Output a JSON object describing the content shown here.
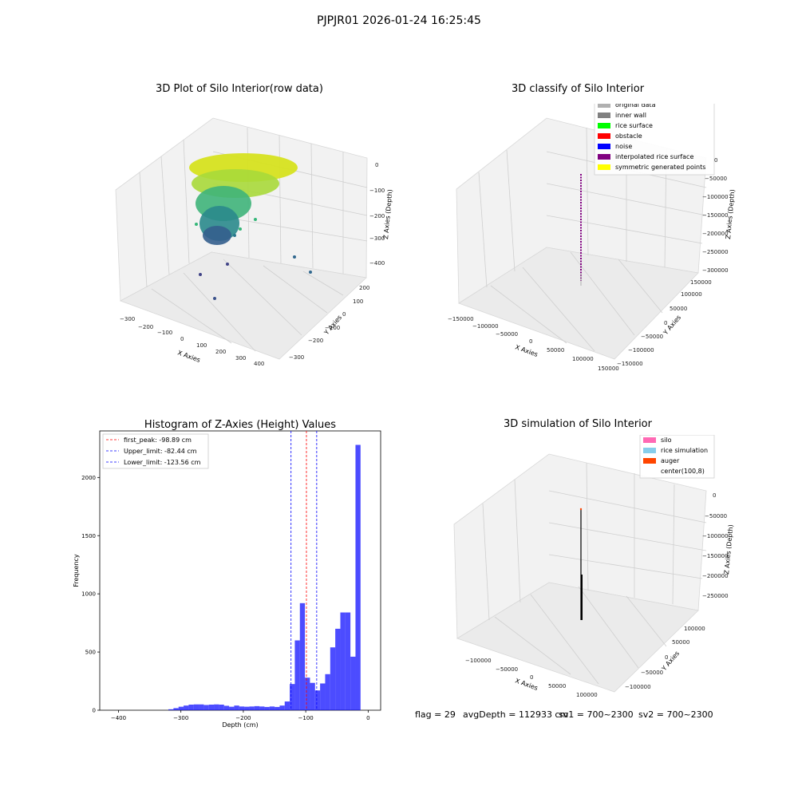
{
  "figure": {
    "suptitle": "PJPJR01 2026-01-24 16:25:45"
  },
  "panel_raw": {
    "title": "3D Plot of Silo Interior(row data)",
    "xlabel": "X Axies",
    "ylabel": "Y Axies",
    "zlabel": "Z Axies (Depth)",
    "x_ticks": [
      "−300",
      "−200",
      "−100",
      "0",
      "100",
      "200",
      "300",
      "400"
    ],
    "y_ticks": [
      "−300",
      "−200",
      "−100",
      "0",
      "100",
      "200"
    ],
    "z_ticks": [
      "0",
      "−100",
      "−200",
      "−300",
      "−400"
    ]
  },
  "panel_classify": {
    "title": "3D classify of Silo Interior",
    "xlabel": "X Axies",
    "ylabel": "Y Axies",
    "zlabel": "Z Axies (Depth)",
    "x_ticks": [
      "−150000",
      "−100000",
      "−50000",
      "0",
      "50000",
      "100000",
      "150000"
    ],
    "y_ticks": [
      "−150000",
      "−100000",
      "−50000",
      "0",
      "50000",
      "100000",
      "150000"
    ],
    "z_ticks": [
      "0",
      "−50000",
      "−100000",
      "−150000",
      "−200000",
      "−250000",
      "−300000"
    ],
    "legend": [
      {
        "label": "original data",
        "color": "#b0b0b0"
      },
      {
        "label": "inner wall",
        "color": "#808080"
      },
      {
        "label": "rice surface",
        "color": "#00ff00"
      },
      {
        "label": "obstacle",
        "color": "#ff0000"
      },
      {
        "label": "noise",
        "color": "#0000ff"
      },
      {
        "label": "interpolated rice surface",
        "color": "#800080"
      },
      {
        "label": "symmetric generated points",
        "color": "#ffff00"
      }
    ]
  },
  "panel_simulation": {
    "title": "3D simulation of Silo Interior",
    "xlabel": "X Axies",
    "ylabel": "Y Axies",
    "zlabel": "Z Axies (Depth)",
    "x_ticks": [
      "−100000",
      "−50000",
      "0",
      "50000",
      "100000"
    ],
    "y_ticks": [
      "−100000",
      "−50000",
      "0",
      "50000",
      "100000"
    ],
    "z_ticks": [
      "0",
      "−50000",
      "−100000",
      "−150000",
      "−200000",
      "−250000"
    ],
    "legend": [
      {
        "label": "silo",
        "color": "#ff69b4"
      },
      {
        "label": "rice simulation",
        "color": "#87ceeb"
      },
      {
        "label": "auger",
        "color": "#ff4500"
      },
      {
        "label": "center(100,8)",
        "color": "#ffffff"
      }
    ]
  },
  "footer": {
    "flag": "flag = 29",
    "avg_depth": "avgDepth = 112933 cm",
    "sv1": "sv1 = 700~2300",
    "sv2": "sv2 = 700~2300"
  },
  "chart_data": [
    {
      "type": "bar",
      "title": "Histogram of Z-Axies (Height) Values",
      "xlabel": "Depth (cm)",
      "ylabel": "Frequency",
      "xlim": [
        -430,
        20
      ],
      "ylim": [
        0,
        2400
      ],
      "x_ticks": [
        -400,
        -300,
        -200,
        -100,
        0
      ],
      "x_tick_labels": [
        "−400",
        "−300",
        "−200",
        "−100",
        "0"
      ],
      "y_ticks": [
        0,
        500,
        1000,
        1500,
        2000
      ],
      "bin_width": 8.1,
      "bin_left_edges": [
        -320.0,
        -311.9,
        -303.8,
        -295.7,
        -287.6,
        -279.5,
        -271.4,
        -263.3,
        -255.2,
        -247.1,
        -239.0,
        -230.9,
        -222.8,
        -214.7,
        -206.6,
        -198.5,
        -190.4,
        -182.3,
        -174.2,
        -166.1,
        -158.0,
        -149.9,
        -141.8,
        -133.7,
        -125.6,
        -117.5,
        -109.4,
        -101.3,
        -93.2,
        -85.1,
        -77.0,
        -68.9,
        -60.8,
        -52.7,
        -44.6,
        -36.5,
        -28.4,
        -20.3,
        -12.2,
        -4.1
      ],
      "values": [
        8,
        18,
        30,
        40,
        48,
        50,
        50,
        45,
        48,
        50,
        48,
        38,
        30,
        40,
        32,
        30,
        32,
        35,
        32,
        28,
        32,
        28,
        40,
        75,
        225,
        600,
        920,
        280,
        235,
        170,
        230,
        310,
        540,
        700,
        840,
        840,
        460,
        2280,
        0,
        0
      ],
      "reference_lines": [
        {
          "label": "first_peak: -98.89 cm",
          "x": -98.89,
          "color": "#ff0000"
        },
        {
          "label": "Upper_limit: -82.44 cm",
          "x": -82.44,
          "color": "#0000ff"
        },
        {
          "label": "Lower_limit: -123.56 cm",
          "x": -123.56,
          "color": "#0000ff"
        }
      ],
      "bar_color": "#0000ff"
    }
  ]
}
